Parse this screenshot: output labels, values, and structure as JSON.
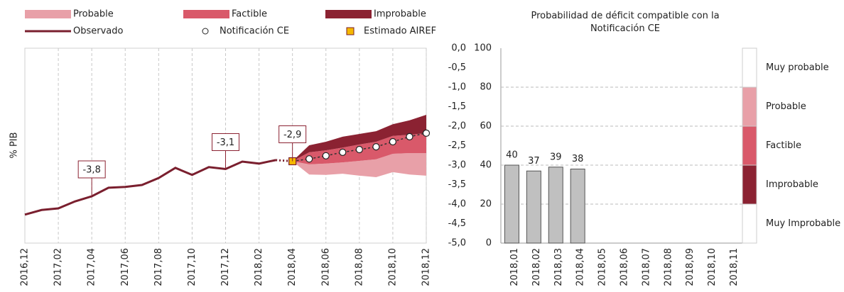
{
  "chart_data": [
    {
      "type": "fan",
      "ylabel": "% PIB",
      "categories": [
        "2016,12",
        null,
        "2017,02",
        null,
        "2017,04",
        null,
        "2017,06",
        null,
        "2017,08",
        null,
        "2017,10",
        null,
        "2017,12",
        null,
        "2018,02",
        null,
        "2018,04",
        null,
        "2018,06",
        null,
        "2018,08",
        null,
        "2018,10",
        null,
        "2018,12"
      ],
      "ylim": [
        -5,
        0
      ],
      "yticks": [
        {
          "value": 0,
          "label": "0,0"
        },
        {
          "value": -0.5,
          "label": "-0,5"
        },
        {
          "value": -1,
          "label": "-1,0"
        },
        {
          "value": -1.5,
          "label": "-1,5"
        },
        {
          "value": -2,
          "label": "-2,0"
        },
        {
          "value": -2.5,
          "label": "-2,5"
        },
        {
          "value": -3,
          "label": "-3,0"
        },
        {
          "value": -3.5,
          "label": "-3,5"
        },
        {
          "value": -4,
          "label": "-4,0"
        },
        {
          "value": -4.5,
          "label": "-4,5"
        },
        {
          "value": -5,
          "label": "-5,0"
        }
      ],
      "grid": true,
      "bands": [
        {
          "name": "Probable",
          "color": "#e8a0a8",
          "low": [
            null,
            null,
            null,
            null,
            null,
            null,
            null,
            null,
            null,
            null,
            null,
            null,
            null,
            null,
            null,
            null,
            -2.9,
            -3.24,
            -3.25,
            -3.22,
            -3.27,
            -3.31,
            -3.18,
            -3.24,
            -3.27
          ],
          "high": [
            null,
            null,
            null,
            null,
            null,
            null,
            null,
            null,
            null,
            null,
            null,
            null,
            null,
            null,
            null,
            null,
            -2.9,
            -2.98,
            -2.96,
            -2.93,
            -2.89,
            -2.85,
            -2.71,
            -2.69,
            -2.69
          ]
        },
        {
          "name": "Factible",
          "color": "#d9596a",
          "low": [
            null,
            null,
            null,
            null,
            null,
            null,
            null,
            null,
            null,
            null,
            null,
            null,
            null,
            null,
            null,
            null,
            -2.9,
            -2.98,
            -2.96,
            -2.93,
            -2.89,
            -2.85,
            -2.71,
            -2.69,
            -2.69
          ],
          "high": [
            null,
            null,
            null,
            null,
            null,
            null,
            null,
            null,
            null,
            null,
            null,
            null,
            null,
            null,
            null,
            null,
            -2.9,
            -2.67,
            -2.62,
            -2.55,
            -2.47,
            -2.4,
            -2.25,
            -2.22,
            -2.18
          ]
        },
        {
          "name": "Improbable",
          "color": "#8b2232",
          "low": [
            null,
            null,
            null,
            null,
            null,
            null,
            null,
            null,
            null,
            null,
            null,
            null,
            null,
            null,
            null,
            null,
            -2.9,
            -2.67,
            -2.62,
            -2.55,
            -2.47,
            -2.4,
            -2.25,
            -2.22,
            -2.18
          ],
          "high": [
            null,
            null,
            null,
            null,
            null,
            null,
            null,
            null,
            null,
            null,
            null,
            null,
            null,
            null,
            null,
            null,
            -2.9,
            -2.49,
            -2.4,
            -2.27,
            -2.2,
            -2.13,
            -1.95,
            -1.85,
            -1.71
          ]
        }
      ],
      "series": [
        {
          "name": "Observado",
          "kind": "line",
          "color": "#7a1f2e",
          "values": [
            -4.27,
            -4.15,
            -4.11,
            -3.93,
            -3.8,
            -3.58,
            -3.56,
            -3.51,
            -3.33,
            -3.07,
            -3.25,
            -3.05,
            -3.1,
            -2.91,
            -2.96,
            -2.87,
            null,
            null,
            null,
            null,
            null,
            null,
            null,
            null,
            null
          ],
          "value_labels": [
            null,
            null,
            null,
            null,
            "-3,8",
            null,
            null,
            null,
            null,
            null,
            null,
            null,
            "-3,1",
            null,
            null,
            null,
            null,
            null,
            null,
            null,
            null,
            null,
            null,
            null,
            null
          ]
        },
        {
          "name": "Notificación CE",
          "kind": "circle",
          "color": "#ffffff",
          "values": [
            null,
            null,
            null,
            null,
            null,
            null,
            null,
            null,
            null,
            null,
            null,
            null,
            null,
            null,
            null,
            null,
            null,
            -2.84,
            -2.76,
            -2.67,
            -2.6,
            -2.53,
            -2.4,
            -2.27,
            -2.18
          ]
        },
        {
          "name": "Estimado AIREF",
          "kind": "square",
          "color": "#f5b800",
          "values": [
            null,
            null,
            null,
            null,
            null,
            null,
            null,
            null,
            null,
            null,
            null,
            null,
            null,
            null,
            null,
            null,
            -2.9,
            null,
            null,
            null,
            null,
            null,
            null,
            null,
            null
          ],
          "value_labels": [
            null,
            null,
            null,
            null,
            null,
            null,
            null,
            null,
            null,
            null,
            null,
            null,
            null,
            null,
            null,
            null,
            "-2,9",
            null,
            null,
            null,
            null,
            null,
            null,
            null,
            null
          ]
        }
      ]
    },
    {
      "type": "bar",
      "title": "Probabilidad de déficit compatible con la Notificación CE",
      "categories": [
        "2018,01",
        "2018,02",
        "2018,03",
        "2018,04",
        "2018,05",
        "2018,06",
        "2018,07",
        "2018,08",
        "2018,09",
        "2018,10",
        "2018,11"
      ],
      "values": [
        40,
        37,
        39,
        38,
        null,
        null,
        null,
        null,
        null,
        null,
        null
      ],
      "color": "#c0c0c0",
      "ylim": [
        0,
        100
      ],
      "yticks": [
        0,
        20,
        40,
        60,
        80,
        100
      ],
      "grid": true,
      "zones": [
        {
          "name": "Muy probable",
          "color": "#ffffff",
          "from": 80,
          "to": 100
        },
        {
          "name": "Probable",
          "color": "#e8a0a8",
          "from": 60,
          "to": 80
        },
        {
          "name": "Factible",
          "color": "#d9596a",
          "from": 40,
          "to": 60
        },
        {
          "name": "Improbable",
          "color": "#8b2232",
          "from": 20,
          "to": 40
        },
        {
          "name": "Muy Improbable",
          "color": "#ffffff",
          "from": 0,
          "to": 20
        }
      ]
    }
  ]
}
